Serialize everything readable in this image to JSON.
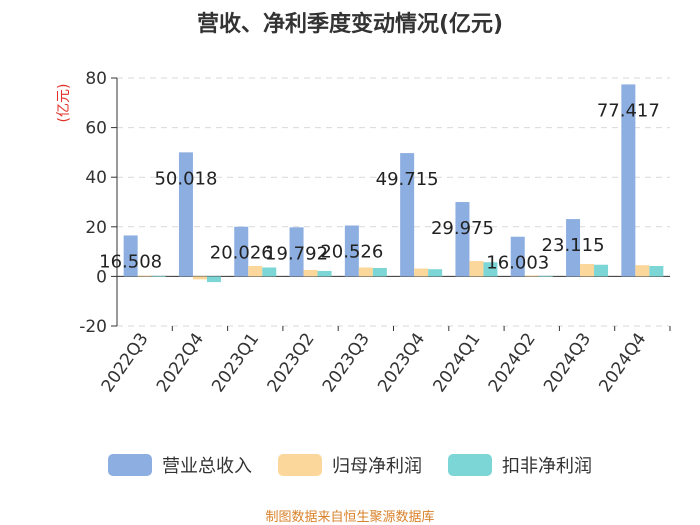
{
  "title": "营收、净利季度变动情况(亿元)",
  "source_note": "制图数据来自恒生聚源数据库",
  "colors": {
    "revenue": "#8caee0",
    "net_profit": "#fbd79b",
    "deducted_net_profit": "#7dd6d6",
    "axis_unit": "#e0312a",
    "source_note": "#d9822b"
  },
  "chart_data": {
    "type": "bar",
    "title": "营收、净利季度变动情况(亿元)",
    "ylabel": "(亿元)",
    "xlabel": "",
    "ylim": [
      -20,
      80
    ],
    "yticks": [
      -20,
      0,
      20,
      40,
      60,
      80
    ],
    "grid": true,
    "legend_position": "bottom",
    "categories": [
      "2022Q3",
      "2022Q4",
      "2023Q1",
      "2023Q2",
      "2023Q3",
      "2023Q4",
      "2024Q1",
      "2024Q2",
      "2024Q3",
      "2024Q4"
    ],
    "series": [
      {
        "name": "营业总收入",
        "values": [
          16.508,
          50.018,
          20.026,
          19.792,
          20.526,
          49.715,
          29.975,
          16.003,
          23.115,
          77.417
        ]
      },
      {
        "name": "归母净利润",
        "values": [
          0.3,
          -1.2,
          4.2,
          2.6,
          3.6,
          3.2,
          6.2,
          0.3,
          5.0,
          4.5
        ]
      },
      {
        "name": "扣非净利润",
        "values": [
          0.2,
          -2.3,
          3.6,
          2.2,
          3.4,
          2.9,
          5.7,
          0.2,
          4.7,
          4.2
        ]
      }
    ],
    "data_labels": [
      "16.508",
      "50.018",
      "20.026",
      "19.792",
      "20.526",
      "49.715",
      "29.975",
      "16.003",
      "23.115",
      "77.417"
    ]
  }
}
